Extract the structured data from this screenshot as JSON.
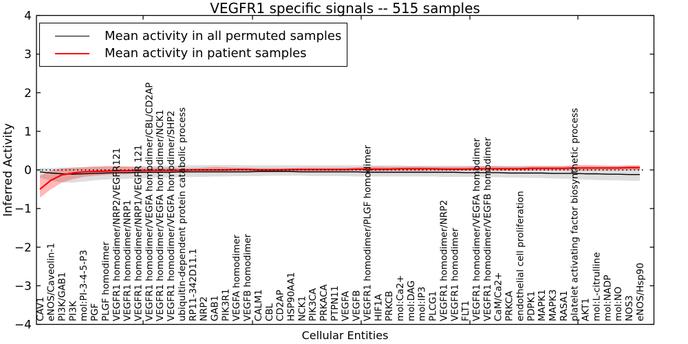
{
  "chart_data": {
    "type": "line",
    "title": "VEGFR1 specific signals -- 515 samples",
    "xlabel": "Cellular Entities",
    "ylabel": "Inferred Activity",
    "ylim": [
      -4,
      4
    ],
    "yticks": [
      4,
      3,
      2,
      1,
      0,
      -1,
      -2,
      -3,
      -4
    ],
    "grid": false,
    "zero_line_style": "black dotted",
    "legend_position": "upper left",
    "categories": [
      "CAV1",
      "eNOS/Caveolin-1",
      "PI3K/GAB1",
      "PI3K",
      "mol:PI-3-4-5-P3",
      "PGF",
      "PLGF homodimer",
      "VEGFR1 homodimer/NRP2/VEGFR121",
      "VEGFR1 homodimer/NRP1",
      "VEGFR1 homodimer/NRP1/VEGFR 121",
      "VEGFR1 homodimer/VEGFA homodimer/CBL/CD2AP",
      "VEGFR1 homodimer/VEGFA homodimer/NCK1",
      "VEGFR1 homodimer/VEGFA homodimer/SHP2",
      "ubiquitin-dependent protein catabolic process",
      "RP11-342D11.1",
      "NRP2",
      "GAB1",
      "PIK3R1",
      "VEGFA homodimer",
      "VEGFB homodimer",
      "CALM1",
      "CBL",
      "CD2AP",
      "HSP90AA1",
      "NCK1",
      "PIK3CA",
      "PRKACA",
      "PTPN11",
      "VEGFA",
      "VEGFB",
      "VEGFR1 homodimer/PLGF homodimer",
      "HIF1A",
      "PRKCB",
      "mol:Ca2+",
      "mol:DAG",
      "mol:IP3",
      "PLCG1",
      "VEGFR1 homodimer/NRP2",
      "VEGFR1 homodimer",
      "FLT1",
      "VEGFR1 homodimer/VEGFA homodimer",
      "VEGFR1 homodimer/VEGFB homodimer",
      "CaM/Ca2+",
      "PRKCA",
      "endothelial cell proliferation",
      "PDPK1",
      "MAPK1",
      "MAPK3",
      "RASA1",
      "platelet activating factor biosynthetic process",
      "AKT1",
      "mol:L-citrulline",
      "mol:NADP",
      "mol:NO",
      "NOS3",
      "eNOS/Hsp90"
    ],
    "series": [
      {
        "name": "Mean activity in all permuted samples",
        "color": "#000000",
        "band_color": "rgba(0,0,0,0.13)",
        "line_width": 1.4,
        "values": [
          -0.05,
          -0.08,
          -0.1,
          -0.11,
          -0.1,
          -0.09,
          -0.08,
          -0.07,
          -0.07,
          -0.06,
          -0.06,
          -0.06,
          -0.06,
          -0.05,
          -0.05,
          -0.05,
          -0.05,
          -0.05,
          -0.05,
          -0.05,
          -0.04,
          -0.04,
          -0.04,
          -0.04,
          -0.05,
          -0.05,
          -0.05,
          -0.05,
          -0.05,
          -0.05,
          -0.06,
          -0.06,
          -0.06,
          -0.06,
          -0.06,
          -0.06,
          -0.06,
          -0.06,
          -0.06,
          -0.07,
          -0.07,
          -0.07,
          -0.07,
          -0.08,
          -0.08,
          -0.08,
          -0.08,
          -0.09,
          -0.09,
          -0.09,
          -0.1,
          -0.1,
          -0.11,
          -0.11,
          -0.12,
          -0.12
        ],
        "upper": [
          0.05,
          0.05,
          0.06,
          0.06,
          0.07,
          0.08,
          0.08,
          0.09,
          0.09,
          0.1,
          0.1,
          0.11,
          0.11,
          0.12,
          0.12,
          0.12,
          0.13,
          0.13,
          0.13,
          0.12,
          0.12,
          0.12,
          0.12,
          0.12,
          0.12,
          0.12,
          0.12,
          0.12,
          0.12,
          0.12,
          0.12,
          0.12,
          0.12,
          0.12,
          0.11,
          0.11,
          0.11,
          0.11,
          0.11,
          0.11,
          0.11,
          0.11,
          0.1,
          0.1,
          0.1,
          0.1,
          0.1,
          0.1,
          0.1,
          0.1,
          0.1,
          0.1,
          0.1,
          0.1,
          0.1,
          0.1
        ],
        "lower": [
          -0.2,
          -0.28,
          -0.32,
          -0.33,
          -0.3,
          -0.27,
          -0.25,
          -0.24,
          -0.23,
          -0.22,
          -0.21,
          -0.2,
          -0.2,
          -0.19,
          -0.18,
          -0.18,
          -0.17,
          -0.17,
          -0.16,
          -0.16,
          -0.16,
          -0.15,
          -0.15,
          -0.15,
          -0.15,
          -0.16,
          -0.16,
          -0.16,
          -0.16,
          -0.17,
          -0.17,
          -0.17,
          -0.17,
          -0.17,
          -0.17,
          -0.17,
          -0.17,
          -0.18,
          -0.18,
          -0.18,
          -0.18,
          -0.19,
          -0.19,
          -0.2,
          -0.2,
          -0.21,
          -0.21,
          -0.22,
          -0.23,
          -0.24,
          -0.25,
          -0.26,
          -0.27,
          -0.27,
          -0.28,
          -0.28
        ]
      },
      {
        "name": "Mean activity in patient samples",
        "color": "#ff0000",
        "band_color": "rgba(255,0,0,0.28)",
        "line_width": 2.2,
        "values": [
          -0.5,
          -0.27,
          -0.13,
          -0.08,
          -0.05,
          -0.04,
          -0.03,
          -0.02,
          -0.02,
          -0.01,
          -0.01,
          -0.01,
          -0.01,
          -0.01,
          0.0,
          0.0,
          0.0,
          0.0,
          0.01,
          0.01,
          0.0,
          0.0,
          0.0,
          0.01,
          0.01,
          0.01,
          0.01,
          0.01,
          0.01,
          0.02,
          0.02,
          0.02,
          0.02,
          0.03,
          0.03,
          0.03,
          0.03,
          0.02,
          0.02,
          0.02,
          0.03,
          0.03,
          0.03,
          0.03,
          0.03,
          0.04,
          0.04,
          0.04,
          0.04,
          0.05,
          0.05,
          0.05,
          0.05,
          0.05,
          0.06,
          0.06
        ],
        "upper": [
          -0.15,
          -0.02,
          0.04,
          0.06,
          0.07,
          0.09,
          0.1,
          0.1,
          0.09,
          0.07,
          0.06,
          0.06,
          0.06,
          0.05,
          0.05,
          0.06,
          0.08,
          0.07,
          0.06,
          0.06,
          0.05,
          0.05,
          0.05,
          0.05,
          0.06,
          0.06,
          0.06,
          0.06,
          0.06,
          0.07,
          0.08,
          0.09,
          0.08,
          0.08,
          0.09,
          0.09,
          0.08,
          0.08,
          0.08,
          0.08,
          0.09,
          0.1,
          0.1,
          0.09,
          0.09,
          0.1,
          0.1,
          0.1,
          0.1,
          0.12,
          0.13,
          0.12,
          0.11,
          0.11,
          0.12,
          0.12
        ],
        "lower": [
          -0.72,
          -0.5,
          -0.33,
          -0.24,
          -0.18,
          -0.15,
          -0.13,
          -0.12,
          -0.11,
          -0.09,
          -0.08,
          -0.08,
          -0.07,
          -0.07,
          -0.06,
          -0.06,
          -0.06,
          -0.06,
          -0.05,
          -0.05,
          -0.05,
          -0.05,
          -0.04,
          -0.04,
          -0.04,
          -0.04,
          -0.04,
          -0.04,
          -0.03,
          -0.03,
          -0.03,
          -0.04,
          -0.03,
          -0.03,
          -0.03,
          -0.03,
          -0.02,
          -0.02,
          -0.02,
          -0.02,
          -0.02,
          -0.02,
          -0.02,
          -0.02,
          -0.02,
          -0.02,
          -0.01,
          -0.01,
          -0.01,
          -0.01,
          -0.02,
          -0.01,
          -0.01,
          -0.01,
          0.0,
          0.0
        ]
      }
    ]
  }
}
